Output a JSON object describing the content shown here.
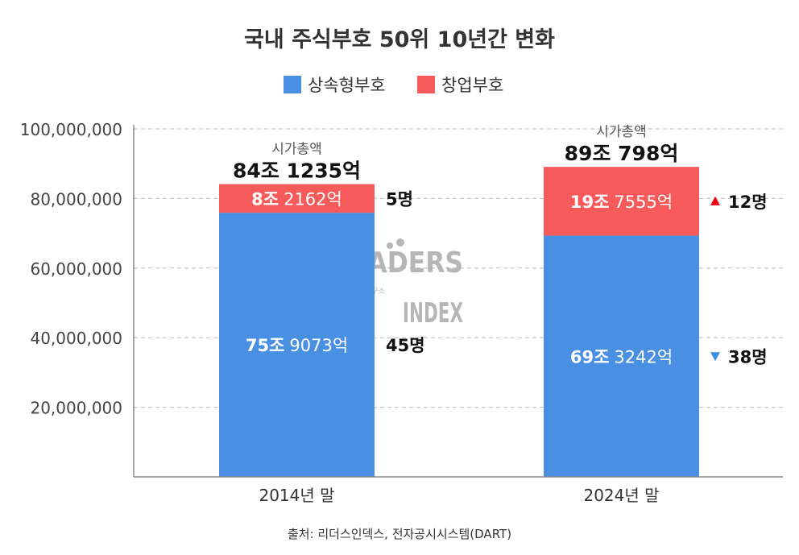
{
  "chart_data": {
    "type": "bar",
    "stacked": true,
    "title": "국내 주식부호 50위 10년간 변화",
    "categories": [
      "2014년 말",
      "2024년 말"
    ],
    "series": [
      {
        "name": "상속형부호",
        "color": "#4a90e2",
        "values": [
          75907300,
          69324200
        ],
        "labels_bold": [
          "75조",
          "69조"
        ],
        "labels_rest": [
          "9073억",
          "3242억"
        ],
        "counts": [
          "45명",
          "38명"
        ],
        "count_markers": [
          "",
          "down"
        ]
      },
      {
        "name": "창업부호",
        "color": "#f75a5a",
        "values": [
          8216200,
          19755500
        ],
        "labels_bold": [
          "8조",
          "19조"
        ],
        "labels_rest": [
          "2162억",
          "7555억"
        ],
        "counts": [
          "5명",
          "12명"
        ],
        "count_markers": [
          "",
          "up"
        ]
      }
    ],
    "totals": {
      "caption": "시가총액",
      "labels": [
        "84조 1235억",
        "89조 798억"
      ]
    },
    "ylim": [
      0,
      100000000
    ],
    "yticks": [
      "20,000,000",
      "40,000,000",
      "60,000,000",
      "80,000,000",
      "100,000,000"
    ],
    "ytick_values": [
      20000000,
      40000000,
      60000000,
      80000000,
      100000000
    ],
    "grid": true,
    "legend_position": "top",
    "marker_colors": {
      "up": "#e8000b",
      "down": "#3d8fe0"
    }
  },
  "source": "출처: 리더스인덱스, 전자공시시스템(DART)",
  "watermark": {
    "line1": "LEADERS",
    "sub": "기업분석연구소",
    "line2": "INDEX"
  }
}
